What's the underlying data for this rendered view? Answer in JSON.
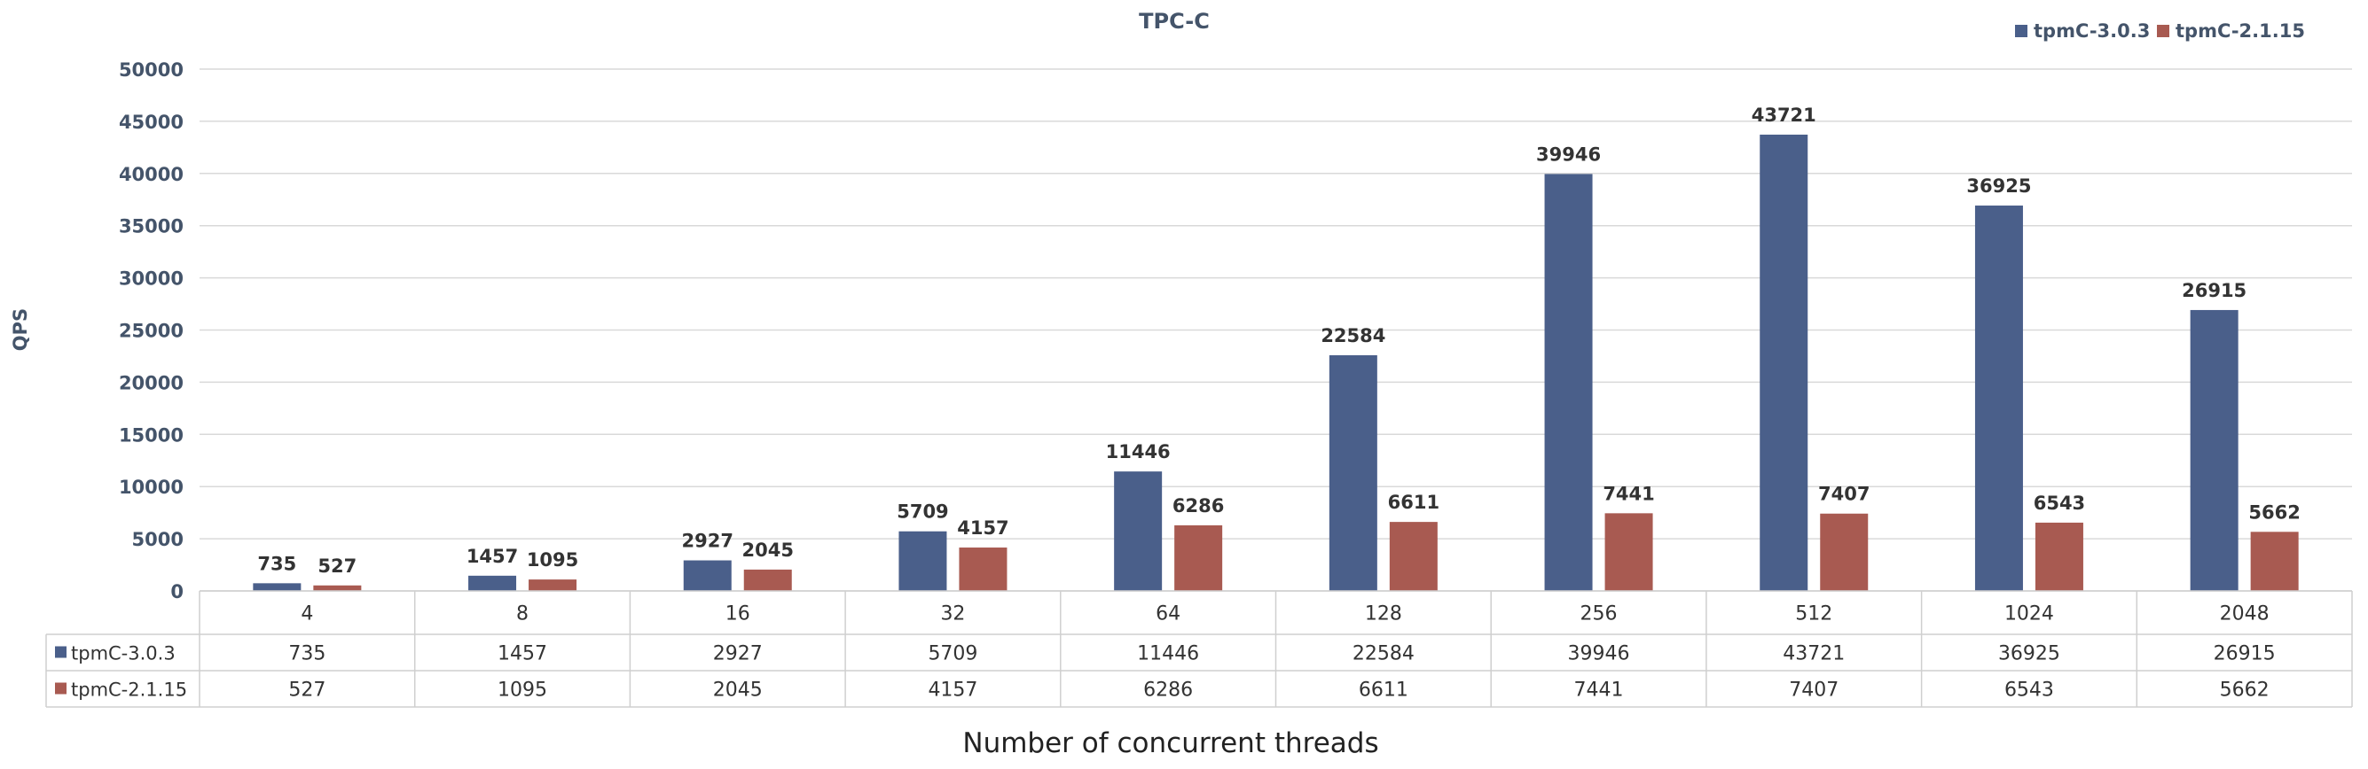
{
  "chart_data": {
    "type": "bar",
    "title": "TPC-C",
    "ylabel": "QPS",
    "xlabel": "Number of concurrent threads",
    "ylim": [
      0,
      50000
    ],
    "y_ticks": [
      0,
      5000,
      10000,
      15000,
      20000,
      25000,
      30000,
      35000,
      40000,
      45000,
      50000
    ],
    "categories": [
      "4",
      "8",
      "16",
      "32",
      "64",
      "128",
      "256",
      "512",
      "1024",
      "2048"
    ],
    "series": [
      {
        "name": "tpmC-3.0.3",
        "color": "#4a5f8a",
        "values": [
          735,
          1457,
          2927,
          5709,
          11446,
          22584,
          39946,
          43721,
          36925,
          26915
        ]
      },
      {
        "name": "tpmC-2.1.15",
        "color": "#a85a51",
        "values": [
          527,
          1095,
          2045,
          4157,
          6286,
          6611,
          7441,
          7407,
          6543,
          5662
        ]
      }
    ],
    "legend_position": "top-right",
    "grid": true,
    "data_table": true
  }
}
